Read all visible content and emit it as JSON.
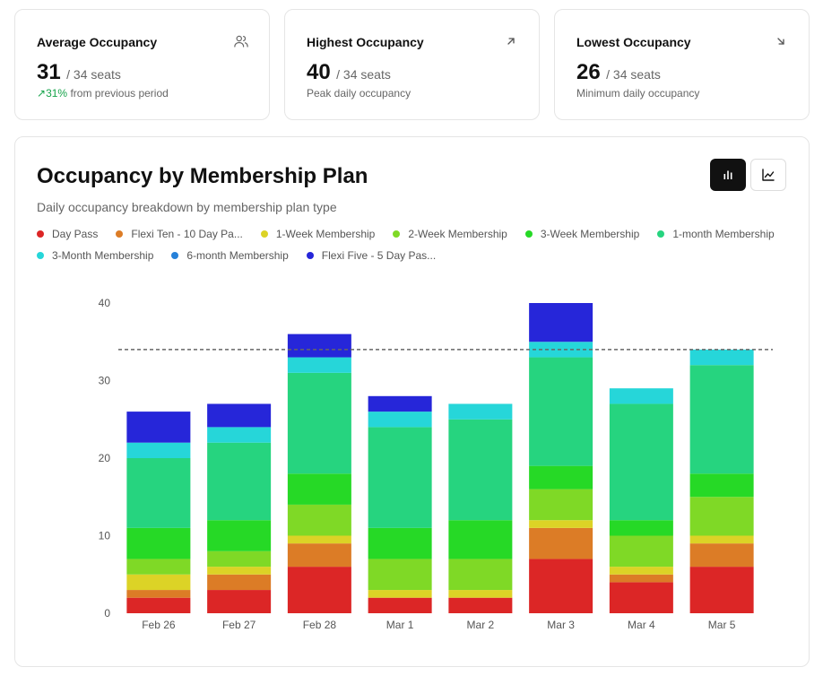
{
  "stats": [
    {
      "title": "Average Occupancy",
      "value": "31",
      "capacity": "/ 34 seats",
      "change_pct": "31%",
      "change_text": "from previous period",
      "icon": "users-icon"
    },
    {
      "title": "Highest Occupancy",
      "value": "40",
      "capacity": "/ 34 seats",
      "subtitle": "Peak daily occupancy",
      "icon": "arrow-up-right-icon"
    },
    {
      "title": "Lowest Occupancy",
      "value": "26",
      "capacity": "/ 34 seats",
      "subtitle": "Minimum daily occupancy",
      "icon": "arrow-down-right-icon"
    }
  ],
  "panel": {
    "title": "Occupancy by Membership Plan",
    "subtitle": "Daily occupancy breakdown by membership plan type",
    "view_toggle": [
      "bar-chart-icon",
      "line-chart-icon"
    ],
    "active_view": "bar"
  },
  "chart_data": {
    "type": "bar",
    "stacked": true,
    "categories": [
      "Feb 26",
      "Feb 27",
      "Feb 28",
      "Mar 1",
      "Mar 2",
      "Mar 3",
      "Mar 4",
      "Mar 5"
    ],
    "ylim": [
      0,
      40
    ],
    "yticks": [
      0,
      10,
      20,
      30,
      40
    ],
    "capacity_line": 34,
    "series": [
      {
        "name": "Day Pass",
        "color": "#dc2626",
        "values": [
          2,
          3,
          6,
          2,
          2,
          7,
          4,
          6
        ]
      },
      {
        "name": "Flexi Ten - 10 Day Pa...",
        "color": "#dc7c26",
        "values": [
          1,
          2,
          3,
          0,
          0,
          4,
          1,
          3
        ]
      },
      {
        "name": "1-Week Membership",
        "color": "#dcd326",
        "values": [
          2,
          1,
          1,
          1,
          1,
          1,
          1,
          1
        ]
      },
      {
        "name": "2-Week Membership",
        "color": "#7fd926",
        "values": [
          2,
          2,
          4,
          4,
          4,
          4,
          4,
          5
        ]
      },
      {
        "name": "3-Week Membership",
        "color": "#26d926",
        "values": [
          4,
          4,
          4,
          4,
          5,
          3,
          2,
          3
        ]
      },
      {
        "name": "1-month Membership",
        "color": "#26d47f",
        "values": [
          9,
          10,
          13,
          13,
          13,
          14,
          15,
          14
        ]
      },
      {
        "name": "3-Month Membership",
        "color": "#26d6d9",
        "values": [
          2,
          2,
          2,
          2,
          2,
          2,
          2,
          2
        ]
      },
      {
        "name": "6-month Membership",
        "color": "#2681d9",
        "values": [
          0,
          0,
          0,
          0,
          0,
          0,
          0,
          0
        ]
      },
      {
        "name": "Flexi Five - 5 Day Pas...",
        "color": "#2626d9",
        "values": [
          4,
          3,
          3,
          2,
          0,
          5,
          0,
          0
        ]
      }
    ]
  }
}
